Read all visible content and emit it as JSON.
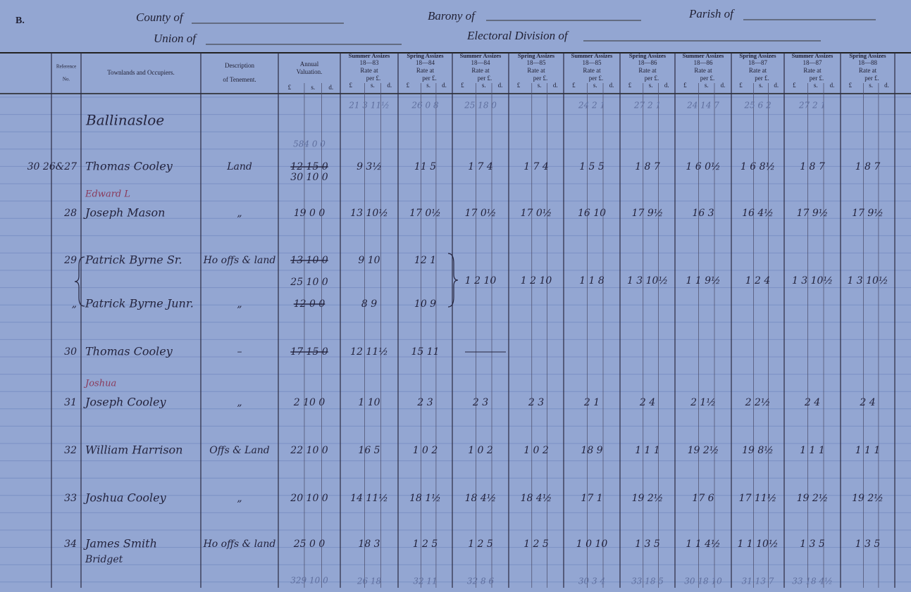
{
  "sheet_letter": "B.",
  "header": {
    "county": "County of",
    "barony": "Barony of",
    "parish": "Parish of",
    "union": "Union of",
    "electoral_division": "Electoral Division of"
  },
  "columns": {
    "reference": [
      "Reference",
      "No."
    ],
    "occupiers": [
      "Townlands and Occupiers."
    ],
    "description": [
      "Description",
      "of Tenement."
    ],
    "valuation": {
      "title": [
        "Annual",
        "Valuation."
      ],
      "units": [
        "£",
        "s.",
        "d."
      ]
    },
    "rates": [
      {
        "title": "Summer Assizes",
        "year": "18—83",
        "rate": "Rate at",
        "per": "per £.",
        "units": [
          "£",
          "s.",
          "d."
        ]
      },
      {
        "title": "Spring Assizes",
        "year": "18—84",
        "rate": "Rate at",
        "per": "per £.",
        "units": [
          "£",
          "s.",
          "d."
        ]
      },
      {
        "title": "Summer Assizes",
        "year": "18—84",
        "rate": "Rate at",
        "per": "per £.",
        "units": [
          "£",
          "s.",
          "d."
        ]
      },
      {
        "title": "Spring Assizes",
        "year": "18—85",
        "rate": "Rate at",
        "per": "per £.",
        "units": [
          "£",
          "s.",
          "d."
        ]
      },
      {
        "title": "Summer Assizes",
        "year": "18—85",
        "rate": "Rate at",
        "per": "per £.",
        "units": [
          "£",
          "s.",
          "d."
        ]
      },
      {
        "title": "Spring Assizes",
        "year": "18—86",
        "rate": "Rate at",
        "per": "per £.",
        "units": [
          "£",
          "s.",
          "d."
        ]
      },
      {
        "title": "Summer Assizes",
        "year": "18—86",
        "rate": "Rate at",
        "per": "per £.",
        "units": [
          "£",
          "s.",
          "d."
        ]
      },
      {
        "title": "Spring Assizes",
        "year": "18—87",
        "rate": "Rate at",
        "per": "per £.",
        "units": [
          "£",
          "s.",
          "d."
        ]
      },
      {
        "title": "Summer Assizes",
        "year": "18—87",
        "rate": "Rate at",
        "per": "per £.",
        "units": [
          "£",
          "s.",
          "d."
        ]
      },
      {
        "title": "Spring Assizes",
        "year": "18—88",
        "rate": "Rate at",
        "per": "per £.",
        "units": [
          "£",
          "s.",
          "d."
        ]
      }
    ]
  },
  "totals_top": {
    "valuation": "584 0 0",
    "rates": [
      "21 3 11½",
      "26 0 8",
      "25 18 0",
      "",
      "24 2 1",
      "27 2 1",
      "24 14 7",
      "25 6 2",
      "27 2 1",
      ""
    ]
  },
  "townland": "Ballinasloe",
  "rows": [
    {
      "ref": "30 26&27",
      "occupier": "Thomas Cooley",
      "description": "Land",
      "valuation_struck": "12 15 0",
      "valuation": "30 10 0",
      "rates": [
        "9 3½",
        "11 5",
        "1 7 4",
        "1 7 4",
        "1 5 5",
        "1 8 7",
        "1 6 0½",
        "1 6 8½",
        "1 8 7",
        "1 8 7"
      ]
    },
    {
      "ref": "28",
      "note": "Edward L",
      "occupier": "Joseph Mason",
      "description": "„",
      "valuation": "19 0 0",
      "rates": [
        "13 10½",
        "17 0½",
        "17 0½",
        "17 0½",
        "16 10",
        "17 9½",
        "16 3",
        "16 4½",
        "17 9½",
        "17 9½"
      ]
    },
    {
      "ref": "29",
      "occupier": "Patrick Byrne Sr.",
      "description": "Ho offs & land",
      "valuation_struck": "13 10 0",
      "rates": [
        "9 10",
        "12 1",
        "",
        "",
        "",
        "",
        "",
        "",
        "",
        ""
      ]
    },
    {
      "ref": "„",
      "occupier": "Patrick Byrne Junr.",
      "description": "„",
      "valuation_struck": "12 0 0",
      "valuation_joint": "25 10 0",
      "rates": [
        "8 9",
        "10 9",
        "",
        "",
        "",
        "",
        "",
        "",
        "",
        ""
      ],
      "joint_rates": [
        "1 2 10",
        "1 2 10",
        "1 1 8",
        "1 3 10½",
        "1 1 9½",
        "1 2 4",
        "1 3 10½",
        "1 3 10½"
      ]
    },
    {
      "ref": "30",
      "occupier": "Thomas Cooley",
      "description": "–",
      "valuation_struck": "17 15 0",
      "rates": [
        "12 11½",
        "15 11",
        "",
        "",
        "",
        "",
        "",
        "",
        "",
        ""
      ]
    },
    {
      "ref": "31",
      "note": "Joshua",
      "occupier": "Joseph Cooley",
      "description": "„",
      "valuation": "2 10 0",
      "rates": [
        "1 10",
        "2 3",
        "2 3",
        "2 3",
        "2 1",
        "2 4",
        "2 1½",
        "2 2½",
        "2 4",
        "2 4"
      ]
    },
    {
      "ref": "32",
      "occupier": "William Harrison",
      "description": "Offs & Land",
      "valuation": "22 10 0",
      "rates": [
        "16 5",
        "1 0 2",
        "1 0 2",
        "1 0 2",
        "18 9",
        "1 1 1",
        "19 2½",
        "19 8½",
        "1 1 1",
        "1 1 1"
      ]
    },
    {
      "ref": "33",
      "occupier": "Joshua Cooley",
      "description": "„",
      "valuation": "20 10 0",
      "rates": [
        "14 11½",
        "18 1½",
        "18 4½",
        "18 4½",
        "17 1",
        "19 2½",
        "17 6",
        "17 11½",
        "19 2½",
        "19 2½"
      ]
    },
    {
      "ref": "34",
      "occupier": "James Smith",
      "note": "Bridget",
      "description": "Ho offs & land",
      "valuation": "25 0 0",
      "rates": [
        "18 3",
        "1 2 5",
        "1 2 5",
        "1 2 5",
        "1 0 10",
        "1 3 5",
        "1 1 4½",
        "1 1 10½",
        "1 3 5",
        "1 3 5"
      ]
    }
  ],
  "totals_bottom": {
    "valuation": "329 10 0",
    "rates": [
      "26 18",
      "32 11",
      "32 8 6",
      "",
      "30 3 4",
      "33 18 5",
      "30 18 10",
      "31 13 7",
      "33 18 4½",
      ""
    ]
  }
}
